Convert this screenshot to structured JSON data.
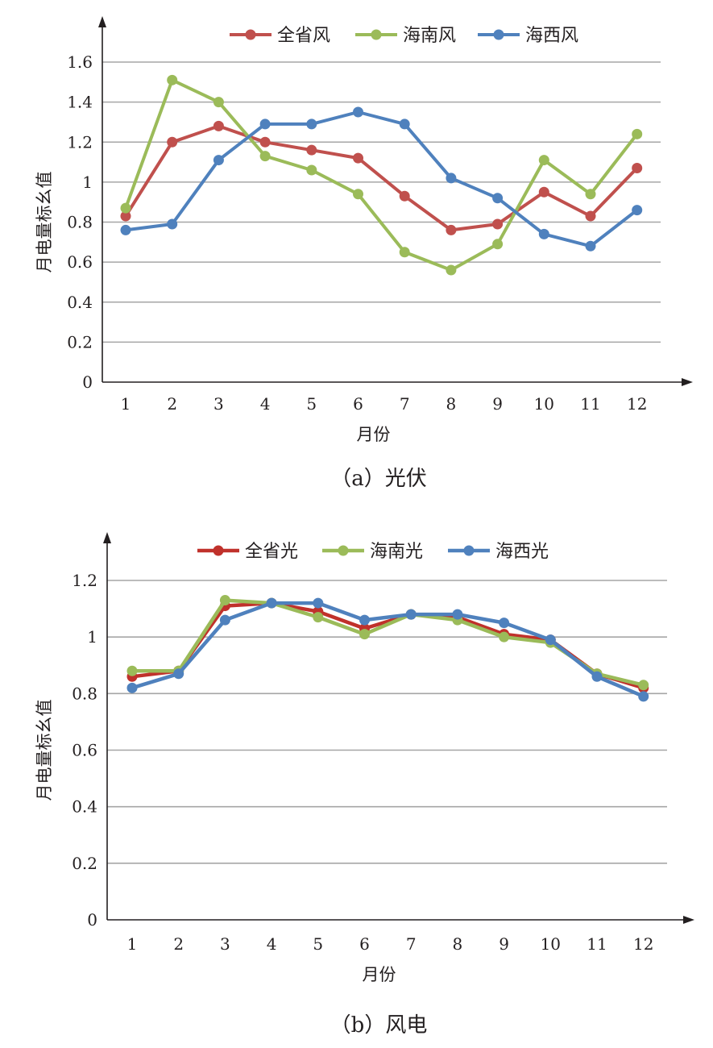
{
  "chart_data": [
    {
      "type": "line",
      "caption": "（a）光伏",
      "xlabel": "月份",
      "ylabel": "月电量标幺值",
      "categories": [
        "1",
        "2",
        "3",
        "4",
        "5",
        "6",
        "7",
        "8",
        "9",
        "10",
        "11",
        "12"
      ],
      "yticks": [
        "0",
        "0.2",
        "0.4",
        "0.6",
        "0.8",
        "1",
        "1.2",
        "1.4",
        "1.6"
      ],
      "ylim": [
        0,
        1.6
      ],
      "grid": true,
      "legend_position": "top",
      "series": [
        {
          "name": "全省风",
          "color": "#c0504d",
          "values": [
            0.83,
            1.2,
            1.28,
            1.2,
            1.16,
            1.12,
            0.93,
            0.76,
            0.79,
            0.95,
            0.83,
            1.07
          ]
        },
        {
          "name": "海南风",
          "color": "#9bbb59",
          "values": [
            0.87,
            1.51,
            1.4,
            1.13,
            1.06,
            0.94,
            0.65,
            0.56,
            0.69,
            1.11,
            0.94,
            1.24
          ]
        },
        {
          "name": "海西风",
          "color": "#4f81bd",
          "values": [
            0.76,
            0.79,
            1.11,
            1.29,
            1.29,
            1.35,
            1.29,
            1.02,
            0.92,
            0.74,
            0.68,
            0.86
          ]
        }
      ]
    },
    {
      "type": "line",
      "caption": "（b）风电",
      "xlabel": "月份",
      "ylabel": "月电量标幺值",
      "categories": [
        "1",
        "2",
        "3",
        "4",
        "5",
        "6",
        "7",
        "8",
        "9",
        "10",
        "11",
        "12"
      ],
      "yticks": [
        "0",
        "0.2",
        "0.4",
        "0.6",
        "0.8",
        "1",
        "1.2"
      ],
      "ylim": [
        0,
        1.2
      ],
      "grid": true,
      "legend_position": "top",
      "series": [
        {
          "name": "全省光",
          "color": "#c0312b",
          "values": [
            0.86,
            0.88,
            1.11,
            1.12,
            1.09,
            1.03,
            1.08,
            1.07,
            1.01,
            0.99,
            0.87,
            0.82
          ]
        },
        {
          "name": "海南光",
          "color": "#9bbb59",
          "values": [
            0.88,
            0.88,
            1.13,
            1.12,
            1.07,
            1.01,
            1.08,
            1.06,
            1.0,
            0.98,
            0.87,
            0.83
          ]
        },
        {
          "name": "海西光",
          "color": "#4f81bd",
          "values": [
            0.82,
            0.87,
            1.06,
            1.12,
            1.12,
            1.06,
            1.08,
            1.08,
            1.05,
            0.99,
            0.86,
            0.79
          ]
        }
      ]
    }
  ]
}
